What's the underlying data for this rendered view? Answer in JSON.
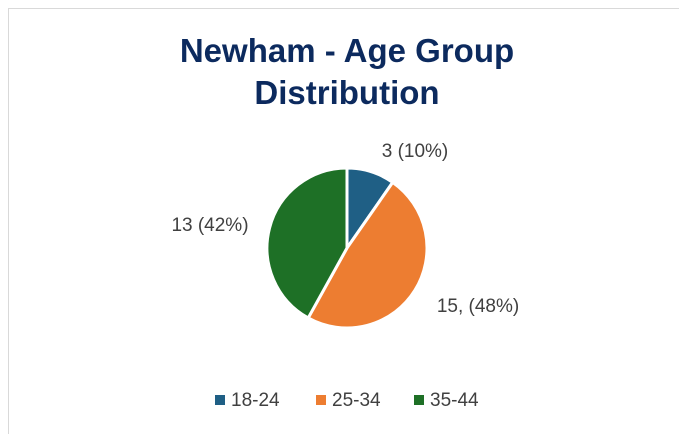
{
  "chart_data": {
    "type": "pie",
    "title": "Newham - Age Group Distribution",
    "categories": [
      "18-24",
      "25-34",
      "35-44"
    ],
    "values": [
      3,
      15,
      13
    ],
    "value_labels": [
      "3 (10%)",
      "15, (48%)",
      "13 (42%)"
    ],
    "colors": [
      "#1f5f85",
      "#ed7d31",
      "#1e7026"
    ],
    "legend": "bottom"
  }
}
